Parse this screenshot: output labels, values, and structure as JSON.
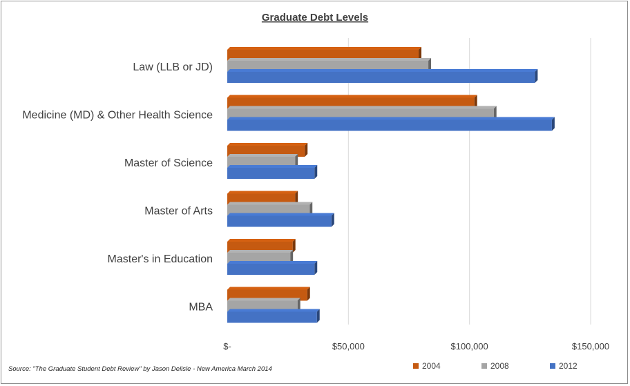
{
  "chart_data": {
    "type": "bar",
    "orientation": "horizontal",
    "title": "Graduate Debt Levels",
    "categories": [
      "Law (LLB or JD)",
      "Medicine (MD) & Other Health Science",
      "Master of Science",
      "Master of Arts",
      "Master's in Education",
      "MBA"
    ],
    "series": [
      {
        "name": "2004",
        "color": "#c55a11",
        "values": [
          79000,
          102000,
          32000,
          28000,
          27000,
          33000
        ]
      },
      {
        "name": "2008",
        "color": "#a5a5a5",
        "values": [
          83000,
          110000,
          28000,
          34000,
          26000,
          29000
        ]
      },
      {
        "name": "2012",
        "color": "#4472c4",
        "values": [
          127000,
          134000,
          36000,
          43000,
          36000,
          37000
        ]
      }
    ],
    "xlim": [
      0,
      150000
    ],
    "ticks": [
      {
        "value": 0,
        "label": "$-"
      },
      {
        "value": 50000,
        "label": "$50,000"
      },
      {
        "value": 100000,
        "label": "$100,000"
      },
      {
        "value": 150000,
        "label": "$150,000"
      }
    ],
    "grid": true,
    "legend_position": "bottom-right",
    "source": "Source: \"The Graduate Student Debt Review\" by Jason Delisle - New America March 2014"
  }
}
